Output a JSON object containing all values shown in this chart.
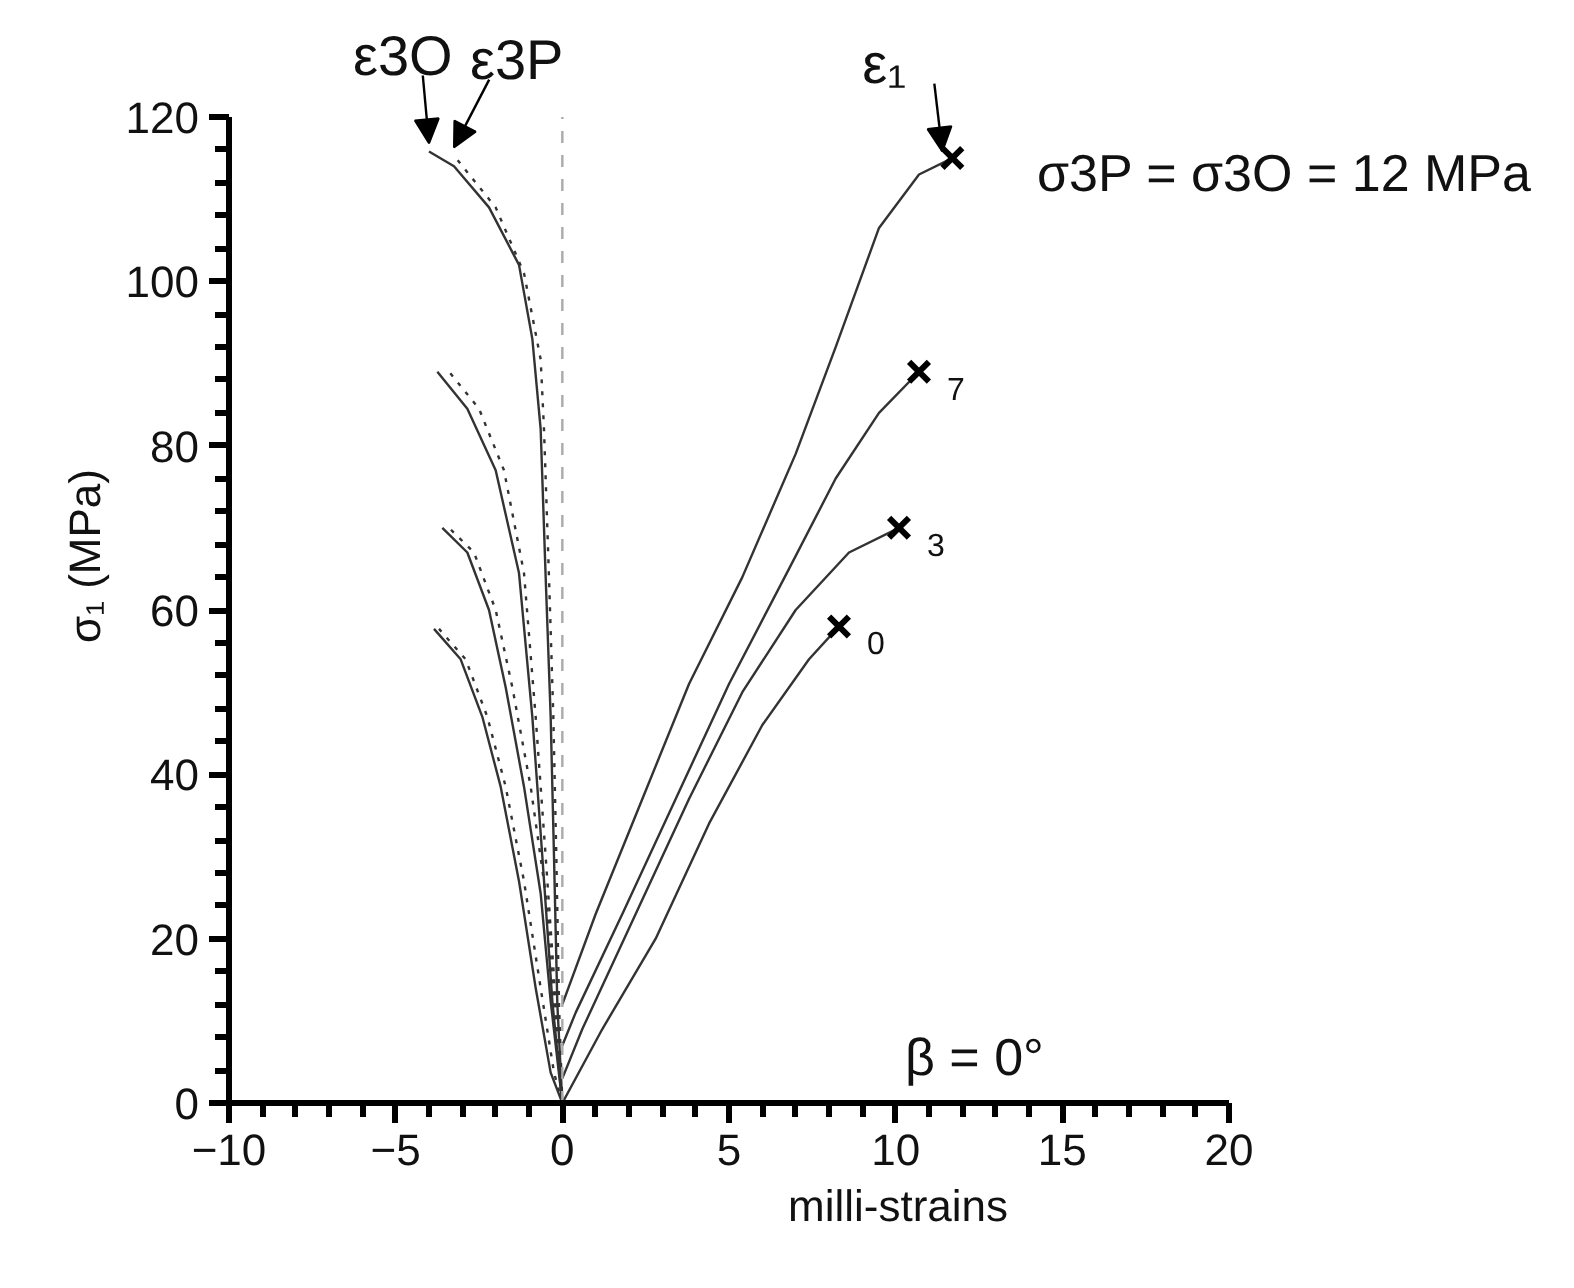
{
  "chart_data": {
    "type": "line",
    "xlabel": "milli-strains",
    "ylabel": "σ₁ (MPa)",
    "xlim": [
      -10,
      20
    ],
    "ylim": [
      0,
      120
    ],
    "xticks": [
      -10,
      {
        "value": -9,
        "label": null
      },
      {
        "value": -8,
        "label": null
      },
      {
        "value": -7,
        "label": null
      },
      {
        "value": -6,
        "label": null
      },
      -5,
      {
        "value": -4,
        "label": null
      },
      {
        "value": -3,
        "label": null
      },
      {
        "value": -2,
        "label": null
      },
      {
        "value": -1,
        "label": null
      },
      0,
      {
        "value": 1,
        "label": null
      },
      {
        "value": 2,
        "label": null
      },
      {
        "value": 3,
        "label": null
      },
      {
        "value": 4,
        "label": null
      },
      5,
      {
        "value": 6,
        "label": null
      },
      {
        "value": 7,
        "label": null
      },
      {
        "value": 8,
        "label": null
      },
      {
        "value": 9,
        "label": null
      },
      10,
      {
        "value": 11,
        "label": null
      },
      {
        "value": 12,
        "label": null
      },
      {
        "value": 13,
        "label": null
      },
      {
        "value": 14,
        "label": null
      },
      15,
      {
        "value": 16,
        "label": null
      },
      {
        "value": 17,
        "label": null
      },
      {
        "value": 18,
        "label": null
      },
      {
        "value": 19,
        "label": null
      },
      20
    ],
    "yticks": [
      0,
      {
        "value": 4,
        "label": null
      },
      {
        "value": 8,
        "label": null
      },
      {
        "value": 12,
        "label": null
      },
      {
        "value": 16,
        "label": null
      },
      20,
      {
        "value": 24,
        "label": null
      },
      {
        "value": 28,
        "label": null
      },
      {
        "value": 32,
        "label": null
      },
      {
        "value": 36,
        "label": null
      },
      40,
      {
        "value": 44,
        "label": null
      },
      {
        "value": 48,
        "label": null
      },
      {
        "value": 52,
        "label": null
      },
      {
        "value": 56,
        "label": null
      },
      60,
      {
        "value": 64,
        "label": null
      },
      {
        "value": 68,
        "label": null
      },
      {
        "value": 72,
        "label": null
      },
      {
        "value": 76,
        "label": null
      },
      80,
      {
        "value": 84,
        "label": null
      },
      {
        "value": 88,
        "label": null
      },
      {
        "value": 92,
        "label": null
      },
      {
        "value": 96,
        "label": null
      },
      100,
      {
        "value": 104,
        "label": null
      },
      {
        "value": 108,
        "label": null
      },
      {
        "value": 112,
        "label": null
      },
      {
        "value": 116,
        "label": null
      },
      120
    ],
    "grid": false,
    "marker": "none",
    "line_style": "solid",
    "series": [
      {
        "color": "#333333",
        "x": [
          0,
          1.0,
          2.4,
          3.8,
          5.4,
          7.0,
          8.2,
          9.5,
          10.7,
          11.7
        ],
        "values": [
          12,
          23,
          37,
          51,
          64,
          79,
          92,
          106.5,
          113,
          115
        ]
      },
      {
        "color": "#333333",
        "x": [
          0,
          0.4,
          1.8,
          3.4,
          5.0,
          6.8,
          8.2,
          9.5,
          10.7
        ],
        "values": [
          7,
          11,
          23,
          37,
          51,
          65,
          76,
          84,
          89
        ]
      },
      {
        "color": "#333333",
        "x": [
          0,
          0.6,
          2.2,
          3.8,
          5.4,
          7.0,
          8.6,
          10.1
        ],
        "values": [
          3,
          9,
          23,
          37,
          50,
          60,
          67,
          70
        ]
      },
      {
        "color": "#333333",
        "x": [
          0,
          1.2,
          2.8,
          4.4,
          6.0,
          7.4,
          8.3
        ],
        "values": [
          0,
          9,
          20,
          34,
          46,
          54,
          58
        ]
      },
      {
        "color": "#333333",
        "x": [
          0,
          -0.15,
          -0.25,
          -0.35,
          -0.5,
          -0.65,
          -0.9,
          -1.3,
          -2.2,
          -3.25,
          -4.0
        ],
        "values": [
          0,
          12,
          30,
          47,
          64,
          82,
          93,
          102,
          109,
          114,
          115.8
        ]
      },
      {
        "color": "#333333",
        "line_style": "dotted",
        "x": [
          0,
          -0.1,
          -0.18,
          -0.27,
          -0.4,
          -0.55,
          -0.65,
          -1.15,
          -2.0,
          -3.25
        ],
        "values": [
          0,
          12,
          30,
          47,
          64,
          82,
          90.5,
          101,
          109,
          115.3
        ]
      },
      {
        "color": "#333333",
        "x": [
          0,
          -0.3,
          -0.6,
          -0.9,
          -1.3,
          -2.0,
          -2.85,
          -3.75
        ],
        "values": [
          0,
          12.4,
          30,
          47,
          64.5,
          77,
          84.5,
          89
        ]
      },
      {
        "color": "#333333",
        "line_style": "dotted",
        "x": [
          0,
          -0.2,
          -0.5,
          -0.8,
          -1.15,
          -1.75,
          -2.5,
          -3.4
        ],
        "values": [
          0,
          12.4,
          30,
          47,
          64.5,
          77,
          84.5,
          89
        ]
      },
      {
        "color": "#333333",
        "x": [
          0,
          -0.35,
          -0.65,
          -1.15,
          -1.7,
          -2.2,
          -2.85,
          -3.6
        ],
        "values": [
          0,
          12.4,
          25.5,
          38.5,
          50.6,
          60,
          67,
          70
        ]
      },
      {
        "color": "#333333",
        "line_style": "dotted",
        "x": [
          0,
          -0.25,
          -0.5,
          -0.95,
          -1.5,
          -2.0,
          -2.65,
          -3.4
        ],
        "values": [
          0,
          12.4,
          25.5,
          38.5,
          50.6,
          60,
          67,
          70
        ]
      },
      {
        "color": "#333333",
        "x": [
          0,
          -0.35,
          -0.8,
          -1.3,
          -1.85,
          -2.4,
          -3.05,
          -3.85
        ],
        "values": [
          0,
          3.7,
          14,
          27,
          38.5,
          47,
          54,
          57.7
        ]
      },
      {
        "color": "#333333",
        "line_style": "dotted",
        "x": [
          0,
          -0.25,
          -0.65,
          -1.15,
          -1.7,
          -2.25,
          -2.9,
          -3.7
        ],
        "values": [
          0,
          3.7,
          14,
          27,
          38.5,
          47,
          54,
          57.7
        ]
      },
      {
        "type": "scatter",
        "marker": "cross",
        "color": "#000000",
        "x": [
          11.7,
          10.7,
          10.1,
          8.3
        ],
        "values": [
          115,
          89,
          70,
          58
        ]
      }
    ],
    "ref_lines": [
      {
        "axis": "x",
        "value": 0,
        "color": "#aaaaaa",
        "line_style": "dashed"
      }
    ],
    "annotations": [
      {
        "text": "ε3O",
        "x": -4.0,
        "y": 115.8
      },
      {
        "text": "ε3P",
        "x": -3.25,
        "y": 115.3
      },
      {
        "text": "ε₁",
        "x": 11.4,
        "y": 114.8
      },
      {
        "text": "7",
        "x": 10.7,
        "y": 89
      },
      {
        "text": "3",
        "x": 10.1,
        "y": 70
      },
      {
        "text": "0",
        "x": 8.3,
        "y": 58
      },
      "σ3P = σ3O = 12 MPa",
      "β = 0°"
    ]
  }
}
